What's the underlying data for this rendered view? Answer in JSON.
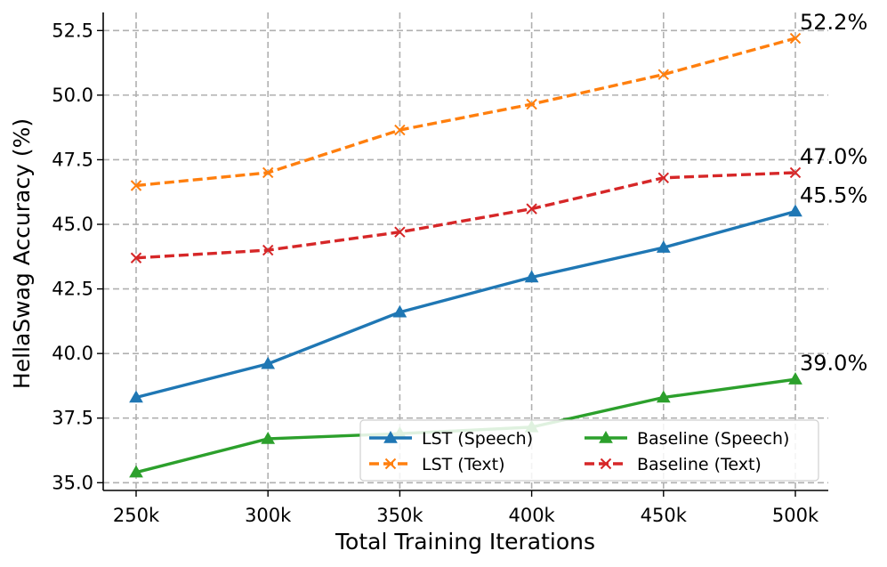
{
  "chart_data": {
    "type": "line",
    "title": "",
    "xlabel": "Total Training Iterations",
    "ylabel": "HellaSwag Accuracy (%)",
    "categories": [
      "250k",
      "300k",
      "350k",
      "400k",
      "450k",
      "500k"
    ],
    "ylim": [
      34.7,
      53.2
    ],
    "yticks": [
      35.0,
      37.5,
      40.0,
      42.5,
      45.0,
      47.5,
      50.0,
      52.5
    ],
    "ytick_labels": [
      "35.0",
      "37.5",
      "40.0",
      "42.5",
      "45.0",
      "47.5",
      "50.0",
      "52.5"
    ],
    "grid": true,
    "legend_position": "lower-right",
    "series": [
      {
        "name": "LST (Speech)",
        "values": [
          38.3,
          39.6,
          41.6,
          42.95,
          44.1,
          45.5
        ],
        "color": "#1f77b4",
        "marker": "triangle",
        "dashed": false,
        "end_label": "45.5%"
      },
      {
        "name": "LST (Text)",
        "values": [
          46.5,
          47.0,
          48.65,
          49.65,
          50.8,
          52.2
        ],
        "color": "#ff7f0e",
        "marker": "x",
        "dashed": true,
        "end_label": "52.2%"
      },
      {
        "name": "Baseline (Speech)",
        "values": [
          35.4,
          36.7,
          36.9,
          37.15,
          38.3,
          39.0
        ],
        "color": "#2ca02c",
        "marker": "triangle",
        "dashed": false,
        "end_label": "39.0%"
      },
      {
        "name": "Baseline (Text)",
        "values": [
          43.7,
          44.0,
          44.7,
          45.6,
          46.8,
          47.0
        ],
        "color": "#d62728",
        "marker": "x",
        "dashed": true,
        "end_label": "47.0%"
      }
    ]
  }
}
